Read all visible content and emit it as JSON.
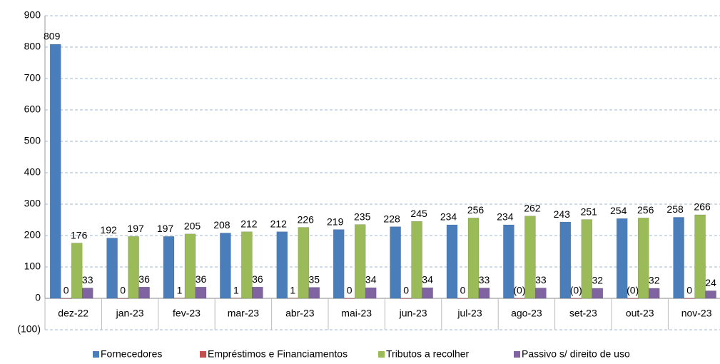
{
  "chart_data": {
    "type": "bar",
    "categories": [
      "dez-22",
      "jan-23",
      "fev-23",
      "mar-23",
      "abr-23",
      "mai-23",
      "jun-23",
      "jul-23",
      "ago-23",
      "set-23",
      "out-23",
      "nov-23"
    ],
    "series": [
      {
        "name": "Fornecedores",
        "color": "#4a7ebb",
        "values": [
          809,
          192,
          197,
          208,
          212,
          219,
          228,
          234,
          234,
          243,
          254,
          258
        ]
      },
      {
        "name": "Empréstimos e Financiamentos",
        "color": "#c0504d",
        "values": [
          0,
          0,
          1,
          1,
          1,
          0,
          0,
          0,
          -0.2,
          -0.2,
          -0.2,
          0
        ],
        "value_labels": [
          "0",
          "0",
          "1",
          "1",
          "1",
          "0",
          "0",
          "0",
          "(0)",
          "(0)",
          "(0)",
          "0"
        ]
      },
      {
        "name": "Tributos a recolher",
        "color": "#9bbb59",
        "values": [
          176,
          197,
          205,
          212,
          226,
          235,
          245,
          256,
          262,
          251,
          256,
          266
        ]
      },
      {
        "name": "Passivo s/ direito de uso",
        "color": "#8064a2",
        "values": [
          33,
          36,
          36,
          36,
          35,
          34,
          34,
          33,
          33,
          32,
          32,
          24
        ]
      }
    ],
    "ylim": [
      -100,
      900
    ],
    "yticks": [
      {
        "value": -100,
        "label": "(100)"
      },
      0,
      100,
      200,
      300,
      400,
      500,
      600,
      700,
      800,
      900
    ],
    "grid": true,
    "legend": "bottom"
  }
}
